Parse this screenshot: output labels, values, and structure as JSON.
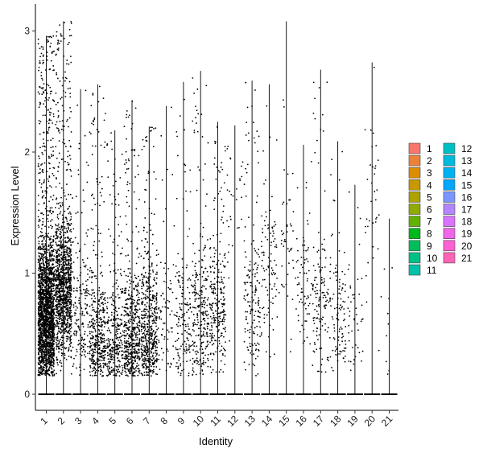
{
  "chart_data": {
    "type": "violin",
    "xlabel": "Identity",
    "ylabel": "Expression Level",
    "ylim": [
      -0.15,
      3.1
    ],
    "yticks": [
      0,
      1,
      2,
      3
    ],
    "categories": [
      "1",
      "2",
      "3",
      "4",
      "5",
      "6",
      "7",
      "8",
      "9",
      "10",
      "11",
      "12",
      "13",
      "14",
      "15",
      "16",
      "17",
      "18",
      "19",
      "20",
      "21"
    ],
    "max_values": [
      2.96,
      3.08,
      2.52,
      2.56,
      2.18,
      2.43,
      2.21,
      2.38,
      2.58,
      2.67,
      2.25,
      2.22,
      2.59,
      2.56,
      3.08,
      2.06,
      2.68,
      2.09,
      1.73,
      2.74,
      1.45
    ],
    "point_counts": [
      2200,
      1200,
      180,
      420,
      320,
      520,
      520,
      80,
      160,
      260,
      260,
      30,
      170,
      100,
      45,
      70,
      130,
      110,
      45,
      35,
      10
    ],
    "points_fill": "#000000",
    "grid": false,
    "legend": {
      "position": "right",
      "columns": 2,
      "entries": [
        {
          "label": "1",
          "color": "#F8766D"
        },
        {
          "label": "2",
          "color": "#EC8239"
        },
        {
          "label": "3",
          "color": "#DB8E00"
        },
        {
          "label": "4",
          "color": "#C79800"
        },
        {
          "label": "5",
          "color": "#AEA200"
        },
        {
          "label": "6",
          "color": "#8FAA00"
        },
        {
          "label": "7",
          "color": "#64B200"
        },
        {
          "label": "8",
          "color": "#00B81B"
        },
        {
          "label": "9",
          "color": "#00BD5C"
        },
        {
          "label": "10",
          "color": "#00C085"
        },
        {
          "label": "11",
          "color": "#00C1A7"
        },
        {
          "label": "12",
          "color": "#00BFC4"
        },
        {
          "label": "13",
          "color": "#00BADE"
        },
        {
          "label": "14",
          "color": "#00B2F3"
        },
        {
          "label": "15",
          "color": "#00A6FF"
        },
        {
          "label": "16",
          "color": "#7C96FF"
        },
        {
          "label": "17",
          "color": "#B385FF"
        },
        {
          "label": "18",
          "color": "#D874FD"
        },
        {
          "label": "19",
          "color": "#EF67EB"
        },
        {
          "label": "20",
          "color": "#FD61D3"
        },
        {
          "label": "21",
          "color": "#FF63B6"
        }
      ]
    }
  }
}
